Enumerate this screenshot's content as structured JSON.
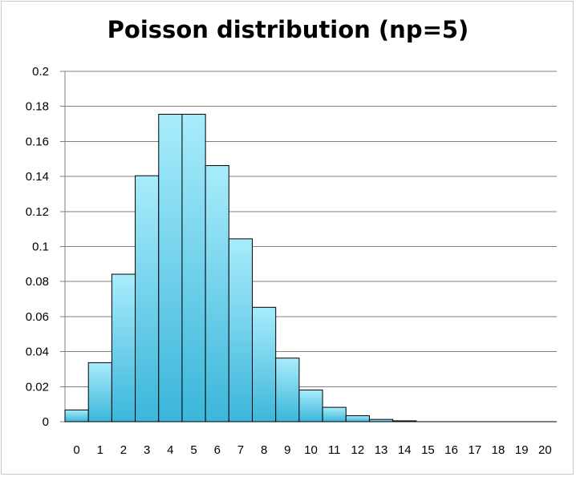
{
  "chart_data": {
    "type": "bar",
    "title": "Poisson distribution (np=5)",
    "xlabel": "",
    "ylabel": "",
    "categories": [
      "0",
      "1",
      "2",
      "3",
      "4",
      "5",
      "6",
      "7",
      "8",
      "9",
      "10",
      "11",
      "12",
      "13",
      "14",
      "15",
      "16",
      "17",
      "18",
      "19",
      "20"
    ],
    "values": [
      0.0067,
      0.0337,
      0.0842,
      0.1404,
      0.1755,
      0.1755,
      0.1462,
      0.1044,
      0.0653,
      0.0363,
      0.0181,
      0.0082,
      0.0034,
      0.0013,
      0.0005,
      0.0002,
      0.0,
      0.0,
      0.0,
      0.0,
      0.0
    ],
    "ylim": [
      0,
      0.2
    ],
    "yticks": [
      "0",
      "0.02",
      "0.04",
      "0.06",
      "0.08",
      "0.1",
      "0.12",
      "0.14",
      "0.16",
      "0.18",
      "0.2"
    ],
    "grid": true,
    "legend": "none",
    "colors": {
      "bar_top": "#a8ecfc",
      "bar_bottom": "#3bb6da",
      "bar_stroke": "#000000",
      "grid": "#7f7f7f"
    }
  }
}
